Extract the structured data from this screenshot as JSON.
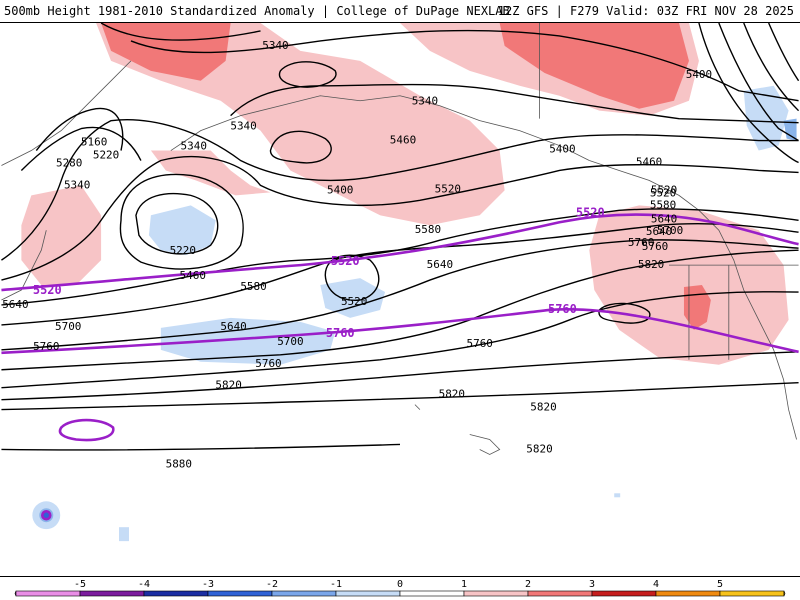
{
  "header": {
    "title_left": "500mb Height 1981-2010 Standardized Anomaly | College of DuPage NEXLAB",
    "title_right": "12Z GFS | F279 Valid: 03Z FRI NOV 28 2025"
  },
  "colors": {
    "anom_neg1": "#c6dcf6",
    "anom_neg2": "#8ab4ea",
    "anom_pos1": "#f7c4c6",
    "anom_pos2": "#f17878",
    "contour": "#000000",
    "highlight_contour": "#9a1fc8",
    "coast": "#555555"
  },
  "contour_labels": {
    "black": [
      "5340",
      "5340",
      "5340",
      "5160",
      "5220",
      "5280",
      "5340",
      "5340",
      "5460",
      "5400",
      "5400",
      "5520",
      "5460",
      "5220",
      "5460",
      "5580",
      "5520",
      "5640",
      "5520",
      "5580",
      "5640",
      "5700",
      "5640",
      "5700",
      "5760",
      "5760",
      "5820",
      "5820",
      "5880",
      "5760",
      "5520",
      "5580",
      "5640",
      "5700",
      "5760",
      "5820",
      "5820",
      "5820",
      "5760",
      "5640",
      "5400"
    ],
    "purple": [
      "5520",
      "5520",
      "5520",
      "5760",
      "5760"
    ]
  },
  "colorbar": {
    "ticks": [
      "-5",
      "-4",
      "-3",
      "-2",
      "-1",
      "0",
      "1",
      "2",
      "3",
      "4",
      "5"
    ],
    "colors": [
      "#7c1c9e",
      "#1b2ea3",
      "#2f62d6",
      "#7aa6ea",
      "#c6dcf6",
      "#ffffff",
      "#f7c4c6",
      "#f17878",
      "#c61e1e",
      "#ef8a10"
    ],
    "left_end": "#e98ee6",
    "right_end": "#f6c21a"
  }
}
